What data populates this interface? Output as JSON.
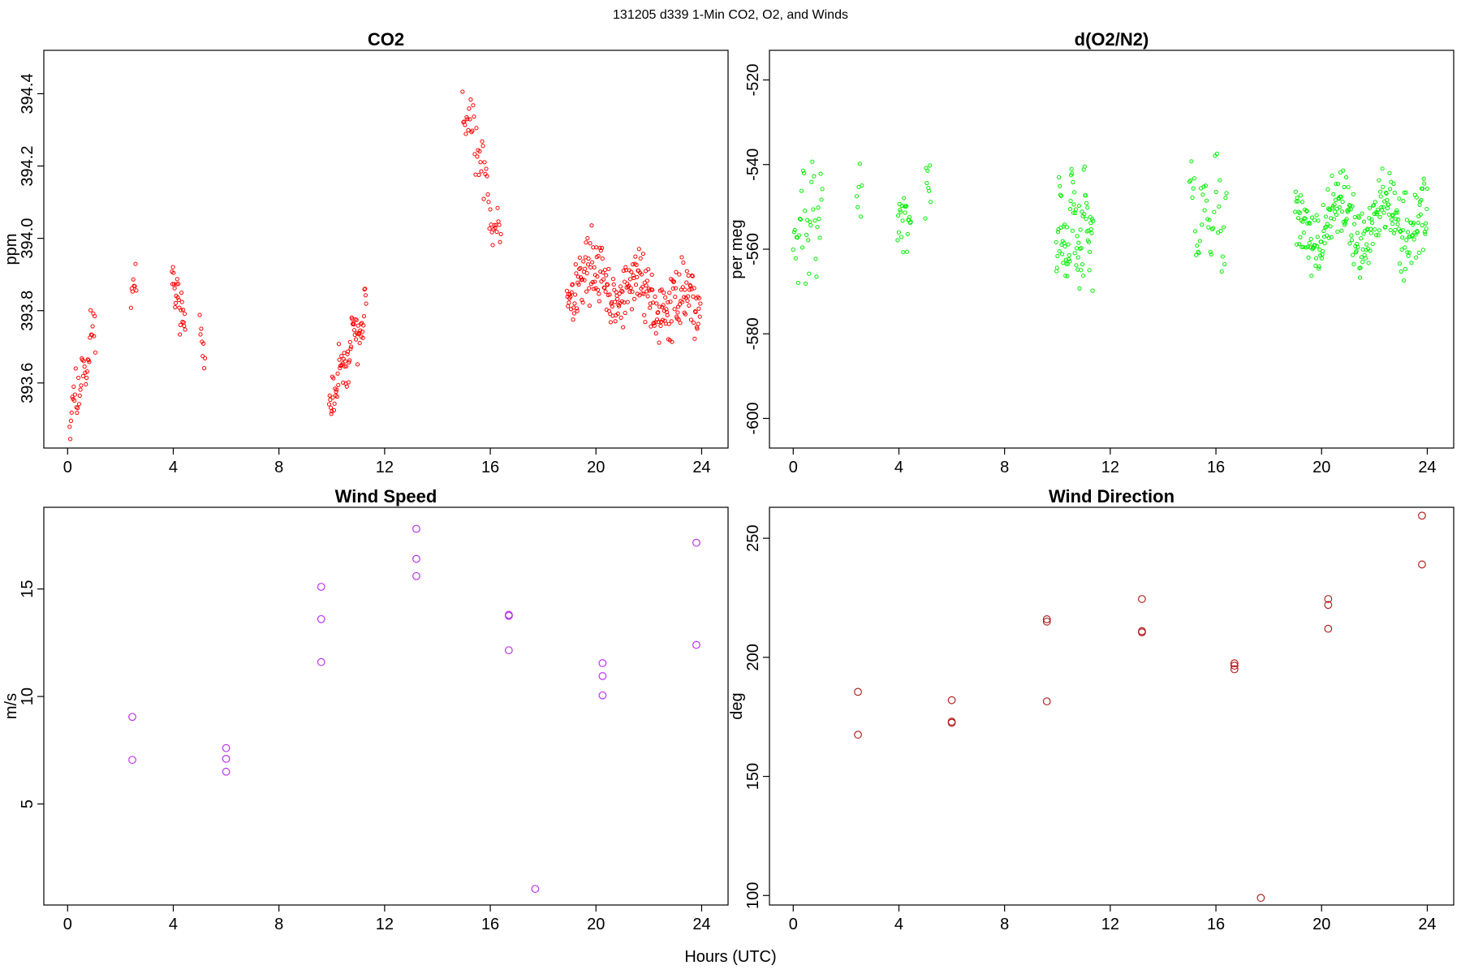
{
  "figure": {
    "suptitle": "131205   d339   1-Min CO2, O2, and Winds",
    "xlabel_shared": "Hours (UTC)"
  },
  "chart_data": [
    {
      "id": "co2",
      "type": "scatter",
      "title": "CO2",
      "xlabel": "",
      "ylabel": "ppm",
      "xlim": [
        -0.9,
        25.0
      ],
      "ylim": [
        393.42,
        394.52
      ],
      "xticks": [
        0,
        4,
        8,
        12,
        16,
        20,
        24
      ],
      "yticks": [
        393.6,
        393.8,
        394.0,
        394.2,
        394.4
      ],
      "ytick_labels": [
        "393.6",
        "393.8",
        "394.0",
        "394.2",
        "394.4"
      ],
      "marker": "small-circle",
      "color": "#ff0000",
      "segments": [
        {
          "t0": 0.05,
          "t1": 1.05,
          "n": 40,
          "y0": 393.5,
          "y1": 393.75,
          "jitter": 0.12,
          "seed": 11
        },
        {
          "t0": 2.4,
          "t1": 2.6,
          "n": 8,
          "y0": 393.85,
          "y1": 393.9,
          "jitter": 0.06,
          "seed": 12
        },
        {
          "t0": 3.95,
          "t1": 4.45,
          "n": 26,
          "y0": 393.9,
          "y1": 393.75,
          "jitter": 0.08,
          "seed": 13
        },
        {
          "t0": 5.0,
          "t1": 5.2,
          "n": 8,
          "y0": 393.78,
          "y1": 393.66,
          "jitter": 0.05,
          "seed": 14
        },
        {
          "t0": 9.9,
          "t1": 11.3,
          "n": 70,
          "y0": 393.55,
          "y1": 393.8,
          "jitter": 0.1,
          "seed": 15
        },
        {
          "t0": 14.95,
          "t1": 16.4,
          "n": 48,
          "y0": 394.4,
          "y1": 393.98,
          "jitter": 0.12,
          "seed": 16
        },
        {
          "t0": 18.9,
          "t1": 23.95,
          "n": 260,
          "y0": 393.9,
          "y1": 393.8,
          "jitter": 0.14,
          "seed": 17
        }
      ]
    },
    {
      "id": "o2",
      "type": "scatter",
      "title": "d(O2/N2)",
      "xlabel": "",
      "ylabel": "per meg",
      "xlim": [
        -0.9,
        25.0
      ],
      "ylim": [
        -607,
        -513
      ],
      "xticks": [
        0,
        4,
        8,
        12,
        16,
        20,
        24
      ],
      "yticks": [
        -600,
        -580,
        -560,
        -540,
        -520
      ],
      "ytick_labels": [
        "-600",
        "-580",
        "-560",
        "-540",
        "-520"
      ],
      "marker": "small-circle",
      "color": "#00ee00",
      "segments": [
        {
          "t0": 0.0,
          "t1": 1.1,
          "n": 36,
          "y0": -555,
          "y1": -550,
          "jitter": 22,
          "seed": 21
        },
        {
          "t0": 2.4,
          "t1": 2.6,
          "n": 6,
          "y0": -547,
          "y1": -547,
          "jitter": 8,
          "seed": 22
        },
        {
          "t0": 3.95,
          "t1": 4.45,
          "n": 22,
          "y0": -552,
          "y1": -552,
          "jitter": 12,
          "seed": 23
        },
        {
          "t0": 5.0,
          "t1": 5.2,
          "n": 8,
          "y0": -545,
          "y1": -545,
          "jitter": 12,
          "seed": 24
        },
        {
          "t0": 9.95,
          "t1": 11.35,
          "n": 80,
          "y0": -560,
          "y1": -552,
          "jitter": 18,
          "seed": 25
        },
        {
          "t0": 15.0,
          "t1": 16.4,
          "n": 40,
          "y0": -550,
          "y1": -550,
          "jitter": 22,
          "seed": 26
        },
        {
          "t0": 19.0,
          "t1": 24.0,
          "n": 260,
          "y0": -554,
          "y1": -553,
          "jitter": 14,
          "seed": 27
        }
      ]
    },
    {
      "id": "wind-speed",
      "type": "scatter",
      "title": "Wind Speed",
      "xlabel": "",
      "ylabel": "m/s",
      "xlim": [
        -0.9,
        25.0
      ],
      "ylim": [
        0.3,
        18.8
      ],
      "xticks": [
        0,
        4,
        8,
        12,
        16,
        20,
        24
      ],
      "yticks": [
        5,
        10,
        15
      ],
      "ytick_labels": [
        "5",
        "10",
        "15"
      ],
      "marker": "circle",
      "color": "#bb33ee",
      "x": [
        2.45,
        2.45,
        6.0,
        6.0,
        6.0,
        9.6,
        9.6,
        9.6,
        13.2,
        13.2,
        13.2,
        16.7,
        16.7,
        16.7,
        17.7,
        20.25,
        20.25,
        20.25,
        23.8,
        23.8
      ],
      "y": [
        9.05,
        7.05,
        7.6,
        7.1,
        6.5,
        15.1,
        13.6,
        11.6,
        17.8,
        16.4,
        15.6,
        13.8,
        13.75,
        12.15,
        1.05,
        11.55,
        10.95,
        10.05,
        17.15,
        12.4
      ]
    },
    {
      "id": "wind-direction",
      "type": "scatter",
      "title": "Wind Direction",
      "xlabel": "",
      "ylabel": "deg",
      "xlim": [
        -0.9,
        25.0
      ],
      "ylim": [
        96,
        263
      ],
      "xticks": [
        0,
        4,
        8,
        12,
        16,
        20,
        24
      ],
      "yticks": [
        100,
        150,
        200,
        250
      ],
      "ytick_labels": [
        "100",
        "150",
        "200",
        "250"
      ],
      "marker": "circle",
      "color": "#b22222",
      "x": [
        2.45,
        2.45,
        6.0,
        6.0,
        6.0,
        9.6,
        9.6,
        9.6,
        13.2,
        13.2,
        13.2,
        16.7,
        16.7,
        16.7,
        17.7,
        20.25,
        20.25,
        20.25,
        23.8,
        23.8
      ],
      "y": [
        185.5,
        167.5,
        182,
        173,
        172.5,
        216,
        215,
        181.5,
        224.5,
        211,
        210.5,
        197.5,
        196.5,
        195,
        99,
        224.5,
        222,
        212,
        259.5,
        239
      ]
    }
  ]
}
